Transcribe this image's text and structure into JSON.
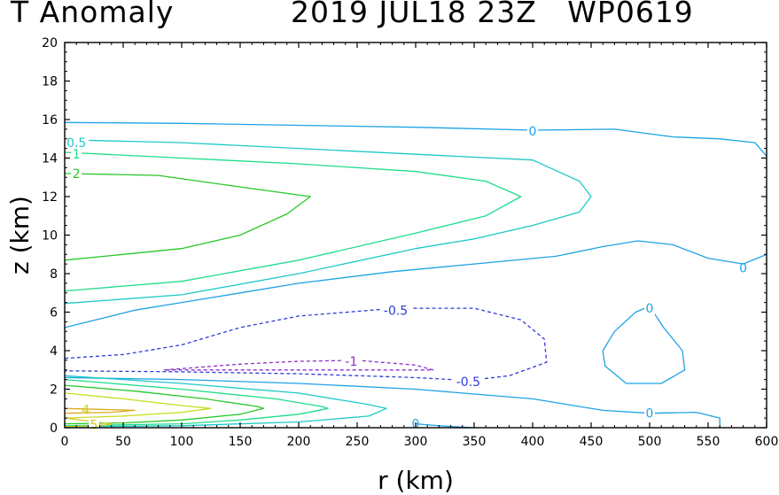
{
  "title": {
    "left": "T Anomaly",
    "right": "2019 JUL18 23Z   WP0619"
  },
  "chart_data": {
    "type": "contour",
    "title": "T Anomaly 2019 JUL18 23Z WP0619",
    "xlabel": "r (km)",
    "ylabel": "z (km)",
    "xlim": [
      0,
      600
    ],
    "ylim": [
      0,
      20
    ],
    "xticks": [
      "0",
      "50",
      "100",
      "150",
      "200",
      "250",
      "300",
      "350",
      "400",
      "450",
      "500",
      "550",
      "600"
    ],
    "yticks": [
      "0",
      "2",
      "4",
      "6",
      "8",
      "10",
      "12",
      "14",
      "16",
      "18",
      "20"
    ],
    "grid": false,
    "contours": [
      {
        "level": 0,
        "color": "#1ea3e6",
        "dashed": false,
        "label": "0",
        "label_at": [
          [
            400,
            15.4
          ],
          [
            580,
            8.3
          ]
        ],
        "points": [
          [
            0,
            15.85
          ],
          [
            100,
            15.8
          ],
          [
            200,
            15.7
          ],
          [
            300,
            15.6
          ],
          [
            400,
            15.45
          ],
          [
            470,
            15.5
          ],
          [
            520,
            15.1
          ],
          [
            560,
            15.0
          ],
          [
            590,
            14.8
          ],
          [
            600,
            14.1
          ]
        ]
      },
      {
        "level": 0,
        "color": "#1ea3e6",
        "dashed": false,
        "label": "",
        "label_at": [],
        "points": [
          [
            0,
            5.2
          ],
          [
            20,
            5.5
          ],
          [
            60,
            6.1
          ],
          [
            100,
            6.5
          ],
          [
            150,
            7.0
          ],
          [
            200,
            7.5
          ],
          [
            280,
            8.1
          ],
          [
            350,
            8.5
          ],
          [
            420,
            8.9
          ],
          [
            460,
            9.4
          ],
          [
            490,
            9.7
          ],
          [
            520,
            9.5
          ],
          [
            550,
            8.8
          ],
          [
            580,
            8.5
          ],
          [
            600,
            9.0
          ]
        ]
      },
      {
        "level": 0,
        "color": "#1ea3e6",
        "dashed": false,
        "label": "0",
        "label_at": [
          [
            500,
            6.2
          ]
        ],
        "points": [
          [
            500,
            6.3
          ],
          [
            488,
            6.0
          ],
          [
            470,
            5.0
          ],
          [
            460,
            4.0
          ],
          [
            462,
            3.2
          ],
          [
            480,
            2.3
          ],
          [
            510,
            2.3
          ],
          [
            530,
            3.0
          ],
          [
            528,
            4.0
          ],
          [
            512,
            5.2
          ],
          [
            500,
            6.3
          ]
        ]
      },
      {
        "level": 0,
        "color": "#1ea3e6",
        "dashed": false,
        "label": "0",
        "label_at": [
          [
            300,
            0.2
          ],
          [
            500,
            0.75
          ]
        ],
        "points": [
          [
            0,
            2.6
          ],
          [
            100,
            2.5
          ],
          [
            200,
            2.3
          ],
          [
            300,
            2.0
          ],
          [
            400,
            1.5
          ],
          [
            460,
            0.9
          ],
          [
            500,
            0.75
          ],
          [
            540,
            0.8
          ],
          [
            560,
            0.5
          ],
          [
            560,
            0.0
          ]
        ]
      },
      {
        "level": 0,
        "color": "#1ea3e6",
        "dashed": false,
        "label": "",
        "label_at": [],
        "points": [
          [
            300,
            0.2
          ],
          [
            320,
            0.1
          ],
          [
            350,
            0.0
          ]
        ]
      },
      {
        "level": -0.5,
        "color": "#2e3bd8",
        "dashed": true,
        "label": "-0.5",
        "label_at": [
          [
            283,
            6.1
          ],
          [
            345,
            2.4
          ]
        ],
        "points": [
          [
            0,
            3.6
          ],
          [
            50,
            3.8
          ],
          [
            100,
            4.3
          ],
          [
            150,
            5.2
          ],
          [
            200,
            5.8
          ],
          [
            283,
            6.2
          ],
          [
            350,
            6.2
          ],
          [
            390,
            5.6
          ],
          [
            410,
            4.6
          ],
          [
            412,
            3.4
          ],
          [
            380,
            2.7
          ],
          [
            345,
            2.45
          ],
          [
            300,
            2.6
          ],
          [
            200,
            2.8
          ],
          [
            100,
            2.9
          ],
          [
            0,
            2.95
          ]
        ]
      },
      {
        "level": -1,
        "color": "#8d2ecb",
        "dashed": true,
        "label": "-1",
        "label_at": [
          [
            245,
            3.45
          ]
        ],
        "points": [
          [
            85,
            3.0
          ],
          [
            150,
            3.3
          ],
          [
            200,
            3.45
          ],
          [
            250,
            3.5
          ],
          [
            300,
            3.25
          ],
          [
            315,
            3.0
          ],
          [
            250,
            3.0
          ],
          [
            150,
            3.0
          ],
          [
            85,
            3.0
          ]
        ]
      },
      {
        "level": 0.5,
        "color": "#1ec8c8",
        "dashed": false,
        "label": "0.5",
        "label_at": [
          [
            10,
            14.8
          ]
        ],
        "points": [
          [
            0,
            14.95
          ],
          [
            100,
            14.8
          ],
          [
            200,
            14.5
          ],
          [
            300,
            14.2
          ],
          [
            400,
            13.9
          ],
          [
            440,
            12.8
          ],
          [
            450,
            12.0
          ],
          [
            440,
            11.2
          ],
          [
            400,
            10.5
          ],
          [
            350,
            9.8
          ],
          [
            300,
            9.3
          ],
          [
            200,
            8.0
          ],
          [
            100,
            6.9
          ],
          [
            0,
            6.45
          ]
        ]
      },
      {
        "level": 0.5,
        "color": "#1ec8c8",
        "dashed": false,
        "label": "",
        "label_at": [],
        "points": [
          [
            0,
            2.7
          ],
          [
            100,
            2.3
          ],
          [
            200,
            1.8
          ],
          [
            260,
            1.2
          ],
          [
            275,
            1.0
          ],
          [
            260,
            0.6
          ],
          [
            200,
            0.3
          ],
          [
            100,
            0.1
          ],
          [
            0,
            0.05
          ]
        ]
      },
      {
        "level": 1,
        "color": "#1edc8c",
        "dashed": false,
        "label": "1",
        "label_at": [
          [
            10,
            14.2
          ]
        ],
        "points": [
          [
            0,
            14.3
          ],
          [
            100,
            14.0
          ],
          [
            200,
            13.7
          ],
          [
            300,
            13.3
          ],
          [
            360,
            12.8
          ],
          [
            390,
            12.0
          ],
          [
            360,
            11.0
          ],
          [
            300,
            10.1
          ],
          [
            200,
            8.7
          ],
          [
            100,
            7.6
          ],
          [
            0,
            7.1
          ]
        ]
      },
      {
        "level": 1,
        "color": "#1edc8c",
        "dashed": false,
        "label": "",
        "label_at": [],
        "points": [
          [
            0,
            2.5
          ],
          [
            100,
            2.0
          ],
          [
            180,
            1.5
          ],
          [
            220,
            1.1
          ],
          [
            225,
            1.0
          ],
          [
            200,
            0.7
          ],
          [
            150,
            0.4
          ],
          [
            100,
            0.2
          ],
          [
            0,
            0.1
          ]
        ]
      },
      {
        "level": 2,
        "color": "#28c828",
        "dashed": false,
        "label": "2",
        "label_at": [
          [
            10,
            13.2
          ]
        ],
        "points": [
          [
            0,
            13.2
          ],
          [
            80,
            13.1
          ],
          [
            150,
            12.5
          ],
          [
            210,
            12.0
          ],
          [
            190,
            11.1
          ],
          [
            150,
            10.0
          ],
          [
            100,
            9.3
          ],
          [
            50,
            9.0
          ],
          [
            0,
            8.7
          ]
        ]
      },
      {
        "level": 2,
        "color": "#28c828",
        "dashed": false,
        "label": "",
        "label_at": [],
        "points": [
          [
            0,
            2.2
          ],
          [
            60,
            1.9
          ],
          [
            120,
            1.5
          ],
          [
            165,
            1.1
          ],
          [
            170,
            1.0
          ],
          [
            150,
            0.7
          ],
          [
            100,
            0.4
          ],
          [
            50,
            0.25
          ],
          [
            0,
            0.2
          ]
        ]
      },
      {
        "level": 4,
        "color": "#c8dc1e",
        "dashed": false,
        "label": "4",
        "label_at": [
          [
            18,
            0.95
          ]
        ],
        "points": [
          [
            0,
            1.8
          ],
          [
            50,
            1.5
          ],
          [
            100,
            1.15
          ],
          [
            125,
            1.0
          ],
          [
            100,
            0.8
          ],
          [
            50,
            0.6
          ],
          [
            0,
            0.5
          ]
        ]
      },
      {
        "level": 6,
        "color": "#dcaa1e",
        "dashed": false,
        "label": "",
        "label_at": [],
        "points": [
          [
            0,
            1.0
          ],
          [
            30,
            0.95
          ],
          [
            60,
            0.9
          ],
          [
            40,
            0.8
          ],
          [
            0,
            0.75
          ]
        ]
      },
      {
        "level": 5,
        "color": "#dcc81e",
        "dashed": false,
        "label": "5",
        "label_at": [
          [
            25,
            0.15
          ]
        ],
        "points": [
          [
            0,
            0.5
          ],
          [
            20,
            0.35
          ],
          [
            40,
            0.2
          ],
          [
            30,
            0.1
          ],
          [
            0,
            0.05
          ]
        ]
      }
    ]
  }
}
